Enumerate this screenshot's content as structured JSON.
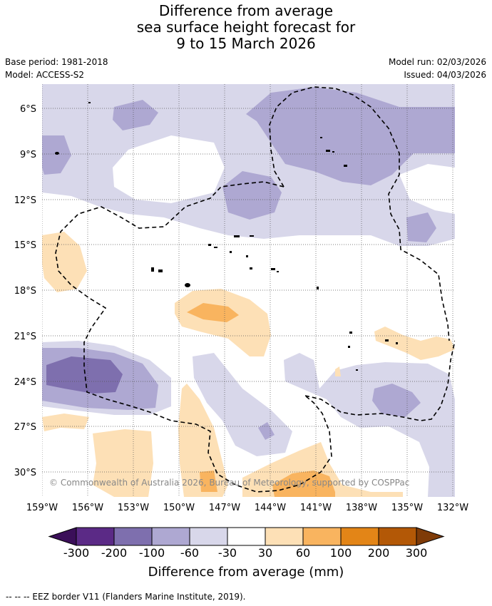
{
  "title": {
    "line1": "Difference from average",
    "line2": "sea surface height forecast for",
    "line3": "9 to 15 March 2026"
  },
  "meta": {
    "base_period": "Base period: 1981-2018",
    "model": "Model: ACCESS-S2",
    "model_run": "Model run: 02/03/2026",
    "issued": "Issued: 04/03/2026"
  },
  "copyright": "© Commonwealth of Australia 2026, Bureau of Meteorology, supported by COSPPac",
  "axes": {
    "lat_labels": [
      "6°S",
      "9°S",
      "12°S",
      "15°S",
      "18°S",
      "21°S",
      "24°S",
      "27°S",
      "30°S"
    ],
    "lon_labels": [
      "159°W",
      "156°W",
      "153°W",
      "150°W",
      "147°W",
      "144°W",
      "141°W",
      "138°W",
      "135°W",
      "132°W"
    ]
  },
  "colorbar": {
    "title": "Difference from average (mm)",
    "ticks": [
      "-300",
      "-200",
      "-100",
      "-60",
      "-30",
      "30",
      "60",
      "100",
      "200",
      "300"
    ],
    "colors": {
      "below": "#3b0f59",
      "c1": "#5b2a86",
      "c2": "#7e6fae",
      "c3": "#aea8d2",
      "c4": "#d8d7ea",
      "c5": "#ffffff",
      "c6": "#fde0b6",
      "c7": "#f9b45f",
      "c8": "#e38517",
      "c9": "#b35806",
      "above": "#7f3b08"
    }
  },
  "footnote": "-- -- -- EEZ border V11 (Flanders Marine Institute, 2019)."
}
